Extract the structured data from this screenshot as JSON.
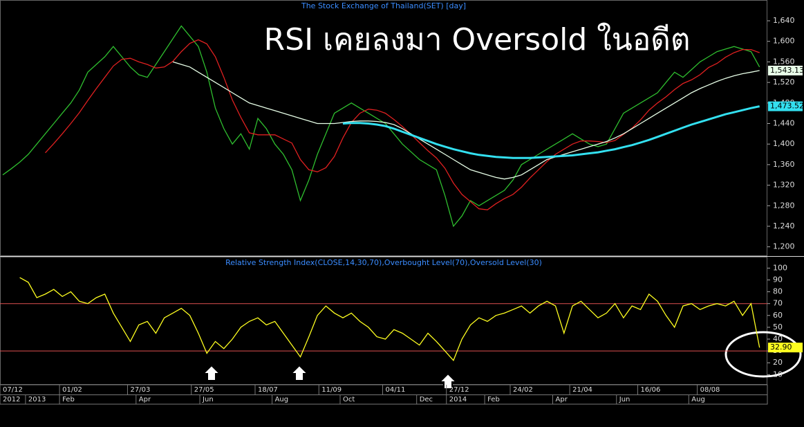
{
  "chart_data": [
    {
      "type": "line",
      "title": "The Stock Exchange of Thailand(SET) [day]",
      "annotation": "RSI เคยลงมา Oversold ในอดีต",
      "ylim": [
        1182,
        1667
      ],
      "yticks": [
        {
          "value": 1200,
          "label": "1,200"
        },
        {
          "value": 1240,
          "label": "1,240"
        },
        {
          "value": 1280,
          "label": "1,280"
        },
        {
          "value": 1320,
          "label": "1,320"
        },
        {
          "value": 1360,
          "label": "1,360"
        },
        {
          "value": 1400,
          "label": "1,400"
        },
        {
          "value": 1440,
          "label": "1,440"
        },
        {
          "value": 1480,
          "label": "1,480"
        },
        {
          "value": 1520,
          "label": "1,520"
        },
        {
          "value": 1560,
          "label": "1,560"
        },
        {
          "value": 1600,
          "label": "1,600"
        },
        {
          "value": 1640,
          "label": "1,640"
        }
      ],
      "series": [
        {
          "color": "#2fbf2f",
          "values": [
            1340,
            1352,
            1365,
            1380,
            1400,
            1420,
            1440,
            1460,
            1480,
            1505,
            1540,
            1555,
            1570,
            1590,
            1570,
            1550,
            1535,
            1530,
            1555,
            1580,
            1605,
            1630,
            1610,
            1590,
            1540,
            1470,
            1430,
            1400,
            1420,
            1390,
            1450,
            1430,
            1400,
            1380,
            1350,
            1290,
            1330,
            1380,
            1420,
            1460,
            1470,
            1480,
            1470,
            1460,
            1450,
            1440,
            1420,
            1400,
            1385,
            1370,
            1360,
            1350,
            1300,
            1240,
            1260,
            1290,
            1280,
            1290,
            1300,
            1310,
            1330,
            1360,
            1370,
            1380,
            1390,
            1400,
            1410,
            1420,
            1410,
            1400,
            1395,
            1400,
            1430,
            1460,
            1470,
            1480,
            1490,
            1500,
            1520,
            1540,
            1530,
            1545,
            1560,
            1570,
            1580,
            1585,
            1590,
            1585,
            1580,
            1550
          ]
        },
        {
          "color": "#e02020",
          "values": [
            null,
            null,
            null,
            null,
            null,
            1383,
            1401,
            1420,
            1440,
            1461,
            1485,
            1508,
            1530,
            1552,
            1565,
            1567,
            1560,
            1555,
            1548,
            1550,
            1561,
            1580,
            1596,
            1603,
            1595,
            1570,
            1530,
            1486,
            1452,
            1422,
            1418,
            1418,
            1418,
            1410,
            1402,
            1370,
            1350,
            1346,
            1354,
            1376,
            1412,
            1442,
            1460,
            1468,
            1466,
            1460,
            1448,
            1434,
            1419,
            1403,
            1387,
            1373,
            1353,
            1324,
            1302,
            1288,
            1274,
            1272,
            1284,
            1294,
            1302,
            1316,
            1334,
            1350,
            1366,
            1380,
            1390,
            1400,
            1406,
            1406,
            1405,
            1403,
            1407,
            1419,
            1431,
            1447,
            1466,
            1480,
            1492,
            1506,
            1518,
            1525,
            1535,
            1549,
            1557,
            1569,
            1578,
            1584,
            1584,
            1578
          ]
        },
        {
          "color": "#e8ffe8",
          "values": [
            null,
            null,
            null,
            null,
            null,
            null,
            null,
            null,
            null,
            null,
            null,
            null,
            null,
            null,
            null,
            null,
            null,
            null,
            null,
            null,
            1560,
            1555,
            1550,
            1540,
            1530,
            1520,
            1510,
            1500,
            1490,
            1480,
            1475,
            1470,
            1465,
            1460,
            1455,
            1450,
            1445,
            1440,
            1440,
            1440,
            1442,
            1444,
            1445,
            1445,
            1444,
            1442,
            1438,
            1430,
            1420,
            1410,
            1400,
            1390,
            1380,
            1370,
            1360,
            1350,
            1345,
            1340,
            1335,
            1332,
            1335,
            1340,
            1350,
            1360,
            1370,
            1375,
            1380,
            1385,
            1390,
            1395,
            1400,
            1405,
            1412,
            1420,
            1430,
            1440,
            1450,
            1460,
            1470,
            1480,
            1490,
            1500,
            1508,
            1515,
            1522,
            1528,
            1533,
            1537,
            1540,
            1543.13
          ],
          "value_labels": [
            null,
            null,
            null,
            null,
            null,
            null,
            null,
            null,
            null,
            null,
            null,
            null,
            null,
            null,
            null,
            null,
            null,
            null,
            null,
            null,
            null,
            null,
            null,
            null,
            null,
            null,
            null,
            null,
            null,
            null,
            null,
            null,
            null,
            null,
            null,
            null,
            null,
            null,
            null,
            null,
            null,
            null,
            null,
            null,
            null,
            null,
            null,
            null,
            null,
            null,
            null,
            null,
            null,
            null,
            null,
            null,
            null,
            null,
            null,
            null,
            null,
            null,
            null,
            null,
            null,
            null,
            null,
            null,
            null,
            null,
            null,
            null,
            null,
            null,
            null,
            null,
            null,
            null,
            null,
            null,
            null,
            null,
            null,
            null,
            null,
            null,
            null,
            null,
            null,
            "1,543.13"
          ]
        },
        {
          "color": "#33e0f0",
          "width": 3,
          "values": [
            null,
            null,
            null,
            null,
            null,
            null,
            null,
            null,
            null,
            null,
            null,
            null,
            null,
            null,
            null,
            null,
            null,
            null,
            null,
            null,
            null,
            null,
            null,
            null,
            null,
            null,
            null,
            null,
            null,
            null,
            null,
            null,
            null,
            null,
            null,
            null,
            null,
            null,
            null,
            null,
            1440,
            1441,
            1441,
            1440,
            1438,
            1435,
            1430,
            1424,
            1418,
            1412,
            1406,
            1400,
            1395,
            1390,
            1386,
            1382,
            1379,
            1377,
            1375,
            1374,
            1373,
            1373,
            1373,
            1374,
            1375,
            1376,
            1377,
            1378,
            1380,
            1382,
            1384,
            1387,
            1390,
            1394,
            1398,
            1403,
            1408,
            1414,
            1420,
            1426,
            1432,
            1438,
            1443,
            1448,
            1453,
            1458,
            1462,
            1466,
            1470,
            1473.52
          ],
          "value_labels": [
            null,
            null,
            null,
            null,
            null,
            null,
            null,
            null,
            null,
            null,
            null,
            null,
            null,
            null,
            null,
            null,
            null,
            null,
            null,
            null,
            null,
            null,
            null,
            null,
            null,
            null,
            null,
            null,
            null,
            null,
            null,
            null,
            null,
            null,
            null,
            null,
            null,
            null,
            null,
            null,
            null,
            null,
            null,
            null,
            null,
            null,
            null,
            null,
            null,
            null,
            null,
            null,
            null,
            null,
            null,
            null,
            null,
            null,
            null,
            null,
            null,
            null,
            null,
            null,
            null,
            null,
            null,
            null,
            null,
            null,
            null,
            null,
            null,
            null,
            null,
            null,
            null,
            null,
            null,
            null,
            null,
            null,
            null,
            null,
            null,
            null,
            null,
            null,
            null,
            "1,473.52"
          ]
        }
      ]
    },
    {
      "type": "line",
      "title": "Relative Strength Index(CLOSE,14,30,70),Overbought Level(70),Oversold Level(30)",
      "ylim": [
        2,
        109
      ],
      "yticks": [
        10,
        20,
        30,
        40,
        50,
        60,
        70,
        80,
        90,
        100
      ],
      "levels": [
        70,
        30
      ],
      "level_color": "#e05050",
      "series": [
        {
          "color": "#ffff20",
          "values": [
            null,
            null,
            92,
            88,
            75,
            78,
            82,
            76,
            80,
            72,
            70,
            75,
            78,
            62,
            50,
            38,
            52,
            55,
            45,
            58,
            62,
            66,
            60,
            45,
            28,
            38,
            32,
            40,
            50,
            55,
            58,
            52,
            55,
            45,
            35,
            25,
            42,
            60,
            68,
            62,
            58,
            62,
            55,
            50,
            42,
            40,
            48,
            45,
            40,
            35,
            45,
            38,
            30,
            22,
            40,
            52,
            58,
            55,
            60,
            62,
            65,
            68,
            62,
            68,
            72,
            68,
            45,
            68,
            72,
            65,
            58,
            62,
            70,
            58,
            68,
            65,
            78,
            72,
            60,
            50,
            68,
            70,
            65,
            68,
            70,
            68,
            72,
            60,
            70,
            32.9
          ],
          "value_labels": [
            null,
            null,
            null,
            null,
            null,
            null,
            null,
            null,
            null,
            null,
            null,
            null,
            null,
            null,
            null,
            null,
            null,
            null,
            null,
            null,
            null,
            null,
            null,
            null,
            null,
            null,
            null,
            null,
            null,
            null,
            null,
            null,
            null,
            null,
            null,
            null,
            null,
            null,
            null,
            null,
            null,
            null,
            null,
            null,
            null,
            null,
            null,
            null,
            null,
            null,
            null,
            null,
            null,
            null,
            null,
            null,
            null,
            null,
            null,
            null,
            null,
            null,
            null,
            null,
            null,
            null,
            null,
            null,
            null,
            null,
            null,
            null,
            null,
            null,
            null,
            null,
            null,
            null,
            null,
            null,
            null,
            null,
            null,
            null,
            null,
            null,
            null,
            null,
            null,
            "32.90"
          ]
        }
      ],
      "xticks": [
        {
          "value": 0,
          "label": "07/12"
        },
        {
          "value": 7,
          "label": "01/02"
        },
        {
          "value": 15,
          "label": "27/03"
        },
        {
          "value": 22.5,
          "label": "27/05"
        },
        {
          "value": 30,
          "label": "18/07"
        },
        {
          "value": 37.5,
          "label": "11/09"
        },
        {
          "value": 45,
          "label": "04/11"
        },
        {
          "value": 52.5,
          "label": "27/12"
        },
        {
          "value": 60,
          "label": "24/02"
        },
        {
          "value": 67,
          "label": "21/04"
        },
        {
          "value": 75,
          "label": "16/06"
        },
        {
          "value": 82,
          "label": "08/08"
        }
      ],
      "xticks2": [
        {
          "value": 0,
          "label": "2012"
        },
        {
          "value": 3,
          "label": "2013"
        },
        {
          "value": 7,
          "label": "Feb"
        },
        {
          "value": 16,
          "label": "Apr"
        },
        {
          "value": 23.5,
          "label": "Jun"
        },
        {
          "value": 32,
          "label": "Aug"
        },
        {
          "value": 40,
          "label": "Oct"
        },
        {
          "value": 49,
          "label": "Dec"
        },
        {
          "value": 52.5,
          "label": "2014"
        },
        {
          "value": 57,
          "label": "Feb"
        },
        {
          "value": 65,
          "label": "Apr"
        },
        {
          "value": 72.5,
          "label": "Jun"
        },
        {
          "value": 81,
          "label": "Aug"
        }
      ]
    }
  ]
}
